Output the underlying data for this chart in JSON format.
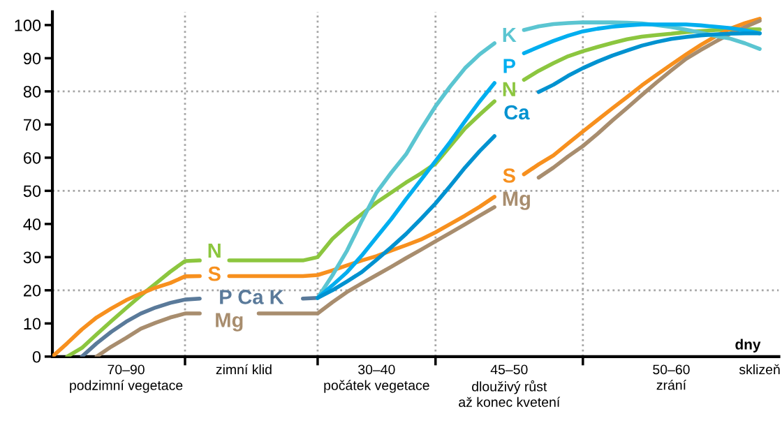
{
  "chart_data": {
    "type": "line",
    "xlabel": "dny",
    "ylim": [
      0,
      104
    ],
    "yticks": [
      0,
      10,
      20,
      30,
      40,
      50,
      60,
      70,
      80,
      90,
      100
    ],
    "categories": [
      null,
      null,
      null,
      null,
      null,
      "70–90\npodzimní vegetace",
      null,
      null,
      null,
      null,
      null,
      null,
      null,
      "zimní klid",
      null,
      null,
      null,
      null,
      null,
      null,
      null,
      null,
      "30–40\npočátek vegetace",
      null,
      null,
      null,
      null,
      null,
      null,
      null,
      null,
      "45–50\ndlouživý růst\naž konec kvetení",
      null,
      null,
      null,
      null,
      null,
      null,
      null,
      null,
      null,
      null,
      "50–60\nzrání",
      null,
      null,
      null,
      null,
      null,
      "sklizeň"
    ],
    "grid": "x",
    "legend": false,
    "marker": "none",
    "line_style": "solid",
    "ref_lines": [
      {
        "axis": "y",
        "value": 20,
        "color": "#a6a6a6",
        "line_style": "dotted"
      },
      {
        "axis": "y",
        "value": 50,
        "color": "#a6a6a6",
        "line_style": "dotted"
      },
      {
        "axis": "y",
        "value": 80,
        "color": "#a6a6a6",
        "line_style": "dotted"
      }
    ],
    "series": [
      {
        "name": "N",
        "color": "#8cc63f",
        "values": [
          null,
          0,
          2.6,
          6.7,
          10.7,
          14.6,
          18.4,
          22,
          25.6,
          28.8,
          29,
          null,
          29,
          29,
          29,
          29,
          29,
          29,
          30,
          35.5,
          39.5,
          43,
          46.5,
          49.5,
          52.5,
          55.2,
          58.2,
          63.5,
          68.8,
          73,
          77,
          null,
          83.5,
          86.2,
          88.5,
          90.6,
          92.1,
          93.4,
          94.6,
          95.7,
          96.5,
          97,
          97.4,
          97.9,
          98.2,
          98.5,
          98.6,
          98.7,
          98.7
        ]
      },
      {
        "name": "S",
        "color": "#f7901e",
        "values": [
          0,
          4,
          8.2,
          11.8,
          14.5,
          17,
          19,
          20.8,
          22.2,
          24.2,
          24.3,
          null,
          24.3,
          24.3,
          24.3,
          24.3,
          24.3,
          24.3,
          24.6,
          26,
          27.5,
          29,
          30.3,
          32,
          33.6,
          35.3,
          37.5,
          40,
          42.5,
          45.2,
          48.2,
          null,
          55,
          58,
          60.7,
          64.3,
          67.9,
          71.4,
          74.9,
          78.3,
          81.8,
          85,
          88.1,
          91.1,
          94,
          96.6,
          98.9,
          100.6,
          101.9
        ]
      },
      {
        "name": "P Ca K",
        "color": "#5a7a9a",
        "values": [
          null,
          null,
          0,
          4,
          7.5,
          10.5,
          13,
          14.8,
          16.2,
          17.2,
          17.5,
          null,
          null,
          null,
          null,
          null,
          null,
          17.5,
          17.7,
          null,
          null,
          null,
          null,
          null,
          null,
          null,
          null,
          null,
          null,
          null,
          null,
          null,
          null,
          null,
          null,
          null,
          null,
          null,
          null,
          null,
          null,
          null,
          null,
          null,
          null,
          null,
          null,
          null,
          null
        ]
      },
      {
        "name": "Mg",
        "color": "#a88d6e",
        "values": [
          null,
          null,
          null,
          0,
          3,
          5.6,
          8.4,
          10.2,
          11.8,
          13,
          13,
          null,
          null,
          null,
          13,
          13,
          13,
          13,
          13,
          16.4,
          19.5,
          22.1,
          24.6,
          27.1,
          29.7,
          32.2,
          34.8,
          37.3,
          39.9,
          42.5,
          45.1,
          null,
          null,
          54,
          57,
          60.4,
          63.5,
          67.2,
          71.2,
          75,
          78.9,
          82.7,
          86.3,
          89.8,
          92.5,
          95,
          97.4,
          99.4,
          101.3
        ]
      },
      {
        "name": "K",
        "color": "#5bc5d1",
        "values": [
          null,
          null,
          null,
          null,
          null,
          null,
          null,
          null,
          null,
          null,
          null,
          null,
          null,
          null,
          null,
          null,
          null,
          null,
          17.7,
          24.5,
          32,
          41,
          49.5,
          55.5,
          61,
          68.5,
          75.5,
          81.5,
          87,
          91.2,
          94.5,
          null,
          98.5,
          99.6,
          100.3,
          100.6,
          100.8,
          100.8,
          100.8,
          100.7,
          100.5,
          100,
          99.4,
          98.6,
          97.7,
          96.7,
          95.9,
          94.5,
          92.8
        ]
      },
      {
        "name": "P",
        "color": "#00aeef",
        "values": [
          null,
          null,
          null,
          null,
          null,
          null,
          null,
          null,
          null,
          null,
          null,
          null,
          null,
          null,
          null,
          null,
          null,
          null,
          17.7,
          21.5,
          25.5,
          30.5,
          36,
          41.5,
          47.5,
          53.2,
          59,
          64.8,
          71,
          77,
          82.5,
          null,
          91.5,
          93.4,
          95.2,
          96.8,
          98.1,
          98.9,
          99.5,
          99.9,
          100.2,
          100.2,
          100.2,
          100.2,
          99.9,
          99.5,
          99.1,
          98.4,
          97.5
        ]
      },
      {
        "name": "Ca",
        "color": "#0092d0",
        "values": [
          null,
          null,
          null,
          null,
          null,
          null,
          null,
          null,
          null,
          null,
          null,
          null,
          null,
          null,
          null,
          null,
          null,
          null,
          17.7,
          20,
          22.7,
          25.5,
          29.2,
          33,
          37,
          41.5,
          46.2,
          51.5,
          57,
          62,
          66.5,
          null,
          null,
          79.8,
          82,
          84.7,
          87,
          89,
          90.8,
          92.3,
          93.8,
          94.9,
          95.8,
          96.4,
          96.9,
          97.2,
          97.4,
          97.5,
          97.5
        ]
      }
    ]
  }
}
